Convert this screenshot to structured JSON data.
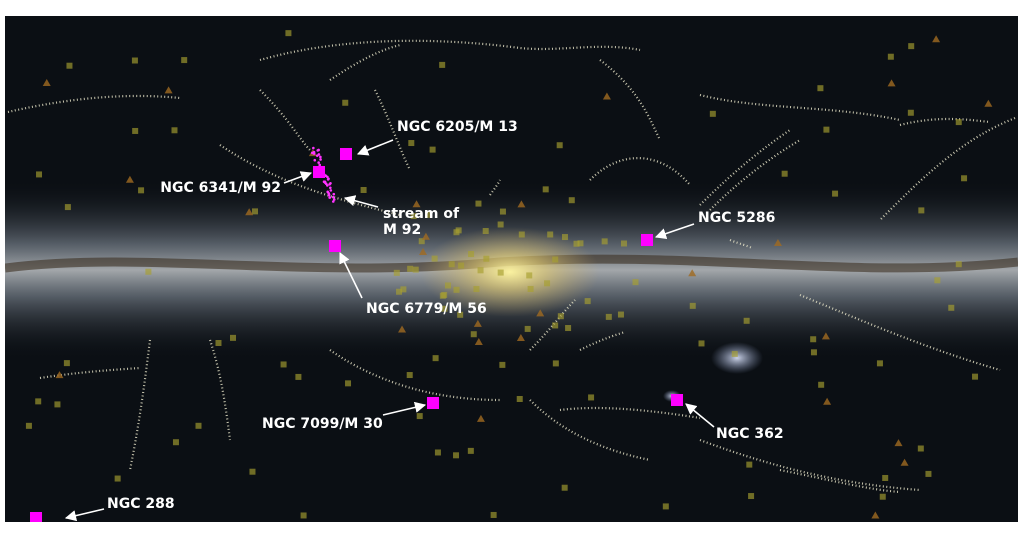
{
  "labels": {
    "m13": "NGC 6205/M 13",
    "m92": "NGC 6341/M 92",
    "stream": [
      "stream of",
      "M 92"
    ],
    "ngc5286": "NGC 5286",
    "m56": "NGC 6779/M 56",
    "m30": "NGC 7099/M 30",
    "ngc362": "NGC 362",
    "ngc288": "NGC 288"
  }
}
